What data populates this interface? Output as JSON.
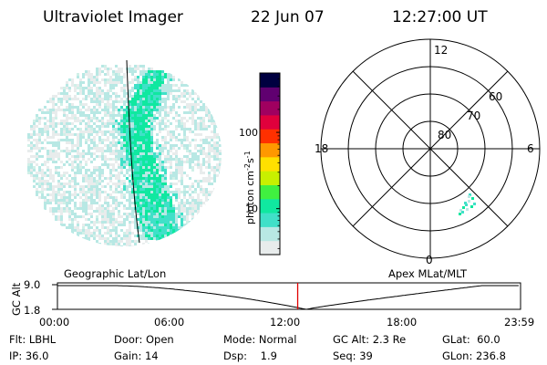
{
  "header": {
    "instrument": "Ultraviolet Imager",
    "date": "22 Jun 07",
    "time": "12:27:00 UT"
  },
  "colorbar": {
    "unit_label": "photon cm",
    "unit_exp1": "-2",
    "unit_s": "s",
    "unit_exp2": "-1",
    "ticks": [
      {
        "value": 100,
        "label": "100"
      },
      {
        "value": 10,
        "label": "10"
      }
    ],
    "range": [
      2.5,
      600
    ],
    "scale": "log"
  },
  "polar_plot": {
    "mlt_labels": {
      "top": "12",
      "left": "18",
      "right": "6",
      "bottom": "0"
    },
    "lat_labels": [
      "60",
      "70",
      "80"
    ]
  },
  "timeline": {
    "y_title": "GC Alt",
    "y_ticks": [
      "9.0",
      "1.8"
    ],
    "left_label": "Geographic Lat/Lon",
    "right_label": "Apex MLat/MLT",
    "x_ticks": [
      "00:00",
      "06:00",
      "12:00",
      "18:00",
      "23:59"
    ],
    "current_time_hours": 12.45
  },
  "info": {
    "flt_label": "Flt:",
    "flt_value": "LBHL",
    "ip_label": "IP:",
    "ip_value": "36.0",
    "door_label": "Door:",
    "door_value": "Open",
    "gain_label": "Gain:",
    "gain_value": "14",
    "mode_label": "Mode:",
    "mode_value": "Normal",
    "dsp_label": "Dsp:",
    "dsp_value": "1.9",
    "gcalt_label": "GC Alt:",
    "gcalt_value": "2.3 Re",
    "seq_label": "Seq:",
    "seq_value": "39",
    "glat_label": "GLat:",
    "glat_value": "60.0",
    "glon_label": "GLon:",
    "glon_value": "236.8"
  },
  "colors": {
    "grid": "#000000",
    "time_marker": "#e00000",
    "colorbar": [
      "#e8ecec",
      "#b8e8e4",
      "#40e0c8",
      "#10e8a0",
      "#40f040",
      "#c8f000",
      "#ffe000",
      "#ff9800",
      "#ff3000",
      "#e0003c",
      "#a00060",
      "#600070",
      "#000040"
    ]
  }
}
